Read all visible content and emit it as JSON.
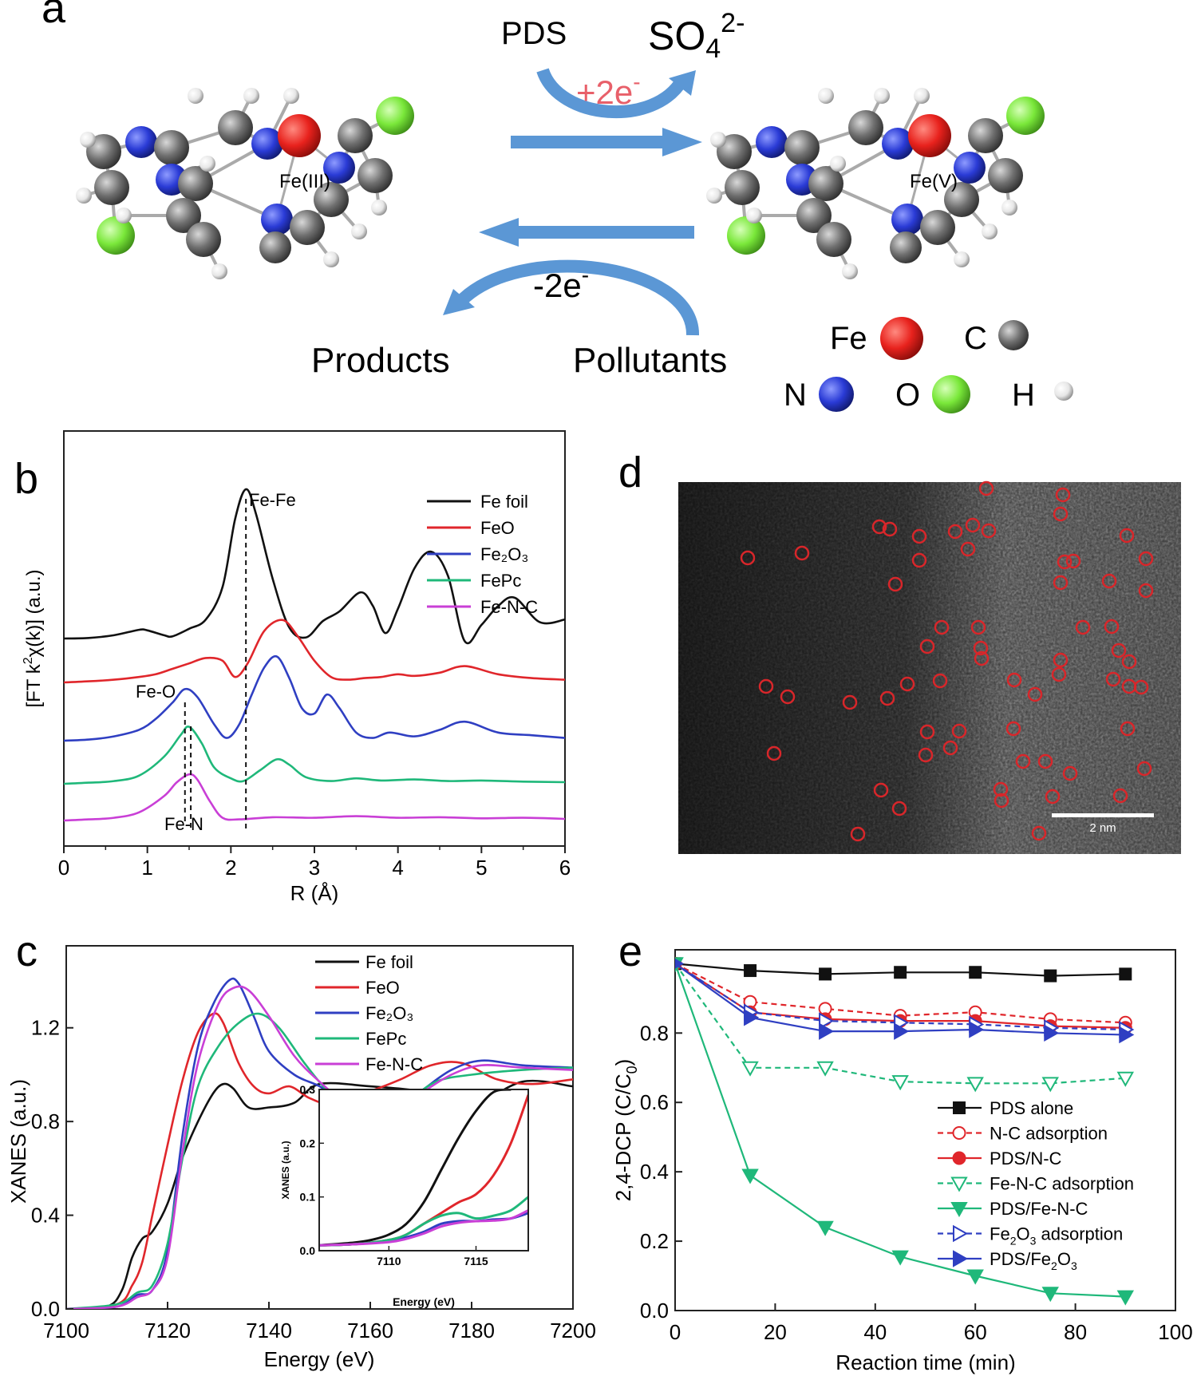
{
  "panel_letters": {
    "a": "a",
    "b": "b",
    "c": "c",
    "d": "d",
    "e": "e"
  },
  "panel_a": {
    "top_left_label": "PDS",
    "top_right_label_base": "SO",
    "top_right_label_sub": "4",
    "top_right_label_sup": "2-",
    "gain_label": "+2e",
    "gain_label_sup": "-",
    "loss_label": "-2e",
    "loss_label_sup": "-",
    "products_label": "Products",
    "pollutants_label": "Pollutants",
    "left_center_label": "Fe(III)",
    "right_center_label": "Fe(V)",
    "legend": [
      {
        "symbol": "Fe",
        "color": "#e8221d"
      },
      {
        "symbol": "C",
        "color": "#6f6f6f"
      },
      {
        "symbol": "N",
        "color": "#2a3bd6"
      },
      {
        "symbol": "O",
        "color": "#7ae83a"
      },
      {
        "symbol": "H",
        "color": "#e6e6e6"
      }
    ],
    "colors": {
      "arrow": "#5b97d5",
      "electron_text": "#e8606a"
    }
  },
  "panel_d": {
    "scale_bar_label": "2 nm",
    "marker_color": "#d8262a"
  },
  "chart_data": [
    {
      "panel": "b",
      "type": "line",
      "xlabel": "R (Å)",
      "ylabel_parts": {
        "pre": "[FT k",
        "sup": "2",
        "post": "χ(k)] (a.u.)"
      },
      "xlim": [
        0,
        6
      ],
      "xticks": [
        0,
        1,
        2,
        3,
        4,
        5,
        6
      ],
      "legend_position": "top-right",
      "annotations": [
        "Fe-Fe",
        "Fe-O",
        "Fe-N"
      ],
      "reference_lines_x": [
        2.18,
        1.45,
        1.52
      ],
      "series": [
        {
          "name": "Fe foil",
          "color": "#111111",
          "x": [
            0.0,
            0.3,
            0.6,
            0.9,
            1.0,
            1.2,
            1.3,
            1.5,
            1.7,
            1.9,
            2.05,
            2.18,
            2.3,
            2.5,
            2.7,
            2.9,
            3.1,
            3.3,
            3.55,
            3.7,
            3.85,
            4.0,
            4.2,
            4.4,
            4.6,
            4.8,
            5.0,
            5.2,
            5.4,
            5.7,
            6.0
          ],
          "y": [
            0.0,
            0.01,
            0.06,
            0.16,
            0.15,
            0.06,
            0.04,
            0.18,
            0.35,
            0.95,
            2.2,
            2.75,
            2.3,
            1.1,
            0.2,
            0.02,
            0.32,
            0.5,
            0.85,
            0.6,
            0.1,
            0.55,
            1.3,
            1.6,
            1.15,
            -0.05,
            0.25,
            0.6,
            0.75,
            0.3,
            0.35
          ]
        },
        {
          "name": "FeO",
          "color": "#e0262b",
          "x": [
            0.0,
            0.3,
            0.6,
            0.9,
            1.1,
            1.3,
            1.5,
            1.7,
            1.9,
            2.05,
            2.2,
            2.4,
            2.62,
            2.8,
            3.0,
            3.2,
            3.4,
            3.6,
            3.8,
            4.0,
            4.2,
            4.5,
            4.8,
            5.2,
            5.6,
            6.0
          ],
          "y": [
            0.0,
            0.02,
            0.05,
            0.1,
            0.15,
            0.25,
            0.35,
            0.45,
            0.4,
            0.1,
            0.35,
            0.95,
            1.15,
            0.85,
            0.4,
            0.1,
            0.05,
            0.08,
            0.1,
            0.15,
            0.12,
            0.18,
            0.3,
            0.15,
            0.08,
            0.05
          ]
        },
        {
          "name": "Fe₂O₃",
          "color": "#2f3fc2",
          "x": [
            0.0,
            0.3,
            0.6,
            0.9,
            1.1,
            1.3,
            1.45,
            1.6,
            1.8,
            1.95,
            2.1,
            2.25,
            2.4,
            2.55,
            2.7,
            2.85,
            3.0,
            3.15,
            3.3,
            3.5,
            3.7,
            3.9,
            4.2,
            4.5,
            4.8,
            5.2,
            5.6,
            6.0
          ],
          "y": [
            0.0,
            0.02,
            0.08,
            0.2,
            0.4,
            0.7,
            0.95,
            0.8,
            0.3,
            0.05,
            0.3,
            0.85,
            1.35,
            1.55,
            1.15,
            0.6,
            0.5,
            0.85,
            0.6,
            0.15,
            0.05,
            0.15,
            0.08,
            0.2,
            0.35,
            0.15,
            0.1,
            0.05
          ]
        },
        {
          "name": "FePc",
          "color": "#1fb87a",
          "x": [
            0.0,
            0.3,
            0.6,
            0.9,
            1.2,
            1.4,
            1.5,
            1.65,
            1.8,
            2.0,
            2.15,
            2.35,
            2.55,
            2.7,
            2.9,
            3.2,
            3.5,
            3.8,
            4.2,
            4.6,
            5.0,
            5.5,
            6.0
          ],
          "y": [
            0.0,
            0.02,
            0.05,
            0.15,
            0.5,
            0.9,
            1.05,
            0.75,
            0.3,
            0.1,
            0.05,
            0.25,
            0.45,
            0.35,
            0.12,
            0.05,
            0.1,
            0.06,
            0.08,
            0.05,
            0.06,
            0.04,
            0.03
          ]
        },
        {
          "name": "Fe-N-C",
          "color": "#c93fd6",
          "x": [
            0.0,
            0.3,
            0.6,
            0.9,
            1.2,
            1.35,
            1.5,
            1.6,
            1.75,
            1.9,
            2.1,
            2.5,
            3.0,
            3.5,
            4.0,
            4.5,
            5.0,
            5.5,
            6.0
          ],
          "y": [
            0.0,
            0.02,
            0.05,
            0.15,
            0.45,
            0.7,
            0.85,
            0.75,
            0.35,
            0.05,
            0.02,
            0.06,
            0.05,
            0.08,
            0.05,
            0.06,
            0.04,
            0.05,
            0.03
          ]
        }
      ]
    },
    {
      "panel": "c",
      "type": "line",
      "xlabel": "Energy (eV)",
      "ylabel": "XANES (a.u.)",
      "xlim": [
        7100,
        7200
      ],
      "ylim": [
        0,
        1.55
      ],
      "xticks": [
        7100,
        7120,
        7140,
        7160,
        7180,
        7200
      ],
      "yticks": [
        0.0,
        0.4,
        0.8,
        1.2
      ],
      "legend_position": "top-right",
      "series": [
        {
          "name": "Fe foil",
          "color": "#111111",
          "x": [
            7100,
            7108,
            7111,
            7113,
            7115,
            7117,
            7120,
            7123,
            7126,
            7129,
            7131,
            7133,
            7136,
            7140,
            7145,
            7150,
            7160,
            7170,
            7175,
            7180,
            7190,
            7200
          ],
          "y": [
            0,
            0.01,
            0.08,
            0.22,
            0.3,
            0.33,
            0.45,
            0.65,
            0.8,
            0.92,
            0.96,
            0.94,
            0.86,
            0.86,
            0.88,
            0.96,
            0.95,
            0.93,
            0.9,
            0.86,
            0.97,
            0.95
          ]
        },
        {
          "name": "FeO",
          "color": "#e0262b",
          "x": [
            7100,
            7110,
            7113,
            7115,
            7117,
            7120,
            7123,
            7126,
            7129,
            7131,
            7134,
            7137,
            7140,
            7144,
            7148,
            7152,
            7160,
            7166,
            7172,
            7178,
            7185,
            7192,
            7200
          ],
          "y": [
            0,
            0.02,
            0.1,
            0.2,
            0.4,
            0.7,
            0.98,
            1.18,
            1.26,
            1.22,
            1.05,
            0.95,
            0.92,
            0.95,
            0.9,
            0.88,
            0.93,
            0.98,
            1.04,
            1.05,
            0.98,
            0.96,
            0.98
          ]
        },
        {
          "name": "Fe₂O₃",
          "color": "#2f3fc2",
          "x": [
            7100,
            7110,
            7114,
            7117,
            7120,
            7123,
            7126,
            7129,
            7132,
            7134,
            7137,
            7140,
            7145,
            7150,
            7155,
            7160,
            7165,
            7170,
            7176,
            7182,
            7190,
            7200
          ],
          "y": [
            0,
            0.01,
            0.06,
            0.08,
            0.25,
            0.75,
            1.12,
            1.3,
            1.4,
            1.39,
            1.25,
            1.1,
            1.0,
            0.95,
            0.88,
            0.83,
            0.86,
            0.93,
            1.02,
            1.06,
            1.04,
            1.03
          ]
        },
        {
          "name": "FePc",
          "color": "#1fb87a",
          "x": [
            7100,
            7110,
            7114,
            7117,
            7120,
            7123,
            7126,
            7130,
            7134,
            7138,
            7142,
            7147,
            7152,
            7157,
            7162,
            7167,
            7173,
            7180,
            7190,
            7200
          ],
          "y": [
            0,
            0.02,
            0.07,
            0.1,
            0.28,
            0.65,
            0.95,
            1.12,
            1.22,
            1.26,
            1.2,
            1.05,
            0.92,
            0.84,
            0.82,
            0.88,
            0.97,
            1.0,
            1.02,
            1.03
          ]
        },
        {
          "name": "Fe-N-C",
          "color": "#c93fd6",
          "x": [
            7100,
            7110,
            7114,
            7117,
            7120,
            7123,
            7126,
            7130,
            7133,
            7136,
            7140,
            7145,
            7150,
            7155,
            7160,
            7165,
            7170,
            7176,
            7182,
            7190,
            7200
          ],
          "y": [
            0,
            0.01,
            0.05,
            0.08,
            0.22,
            0.68,
            1.05,
            1.3,
            1.37,
            1.36,
            1.25,
            1.08,
            0.97,
            0.88,
            0.82,
            0.85,
            0.92,
            1.0,
            1.04,
            1.03,
            1.02
          ]
        }
      ],
      "inset": {
        "xlabel": "Energy (eV)",
        "ylabel": "XANES (a.u.)",
        "xlim": [
          7106,
          7118
        ],
        "ylim": [
          0,
          0.3
        ],
        "xticks": [
          7110,
          7115
        ],
        "yticks": [
          0.0,
          0.1,
          0.2,
          0.3
        ],
        "series": [
          {
            "name": "Fe foil",
            "color": "#111111",
            "x": [
              7106,
              7108,
              7109,
              7110,
              7111,
              7112,
              7113,
              7114,
              7115,
              7116,
              7117
            ],
            "y": [
              0.01,
              0.015,
              0.02,
              0.03,
              0.05,
              0.09,
              0.15,
              0.21,
              0.26,
              0.295,
              0.3
            ]
          },
          {
            "name": "FeO",
            "color": "#e0262b",
            "x": [
              7106,
              7108,
              7110,
              7111,
              7112,
              7113,
              7114,
              7115,
              7116,
              7117,
              7118
            ],
            "y": [
              0.01,
              0.012,
              0.02,
              0.03,
              0.05,
              0.07,
              0.09,
              0.105,
              0.14,
              0.2,
              0.29
            ]
          },
          {
            "name": "Fe₂O₃",
            "color": "#2f3fc2",
            "x": [
              7106,
              7108,
              7110,
              7111,
              7112,
              7113,
              7114,
              7115,
              7116,
              7117,
              7118
            ],
            "y": [
              0.01,
              0.012,
              0.018,
              0.025,
              0.035,
              0.05,
              0.055,
              0.055,
              0.058,
              0.06,
              0.07
            ]
          },
          {
            "name": "FePc",
            "color": "#1fb87a",
            "x": [
              7106,
              7108,
              7110,
              7111,
              7112,
              7113,
              7114,
              7115,
              7116,
              7117,
              7118
            ],
            "y": [
              0.01,
              0.012,
              0.02,
              0.03,
              0.05,
              0.065,
              0.07,
              0.06,
              0.065,
              0.075,
              0.1
            ]
          },
          {
            "name": "Fe-N-C",
            "color": "#c93fd6",
            "x": [
              7106,
              7108,
              7110,
              7111,
              7112,
              7113,
              7114,
              7115,
              7116,
              7117,
              7118
            ],
            "y": [
              0.01,
              0.012,
              0.016,
              0.022,
              0.032,
              0.045,
              0.052,
              0.055,
              0.056,
              0.06,
              0.075
            ]
          }
        ]
      }
    },
    {
      "panel": "e",
      "type": "line",
      "xlabel": "Reaction time (min)",
      "ylabel_parts": {
        "pre": "2,4-DCP (C/C",
        "sub": "0",
        "post": ")"
      },
      "xlim": [
        0,
        100
      ],
      "ylim": [
        0,
        1.04
      ],
      "xticks": [
        0,
        20,
        40,
        60,
        80,
        100
      ],
      "yticks": [
        0.0,
        0.2,
        0.4,
        0.6,
        0.8
      ],
      "legend_position": "bottom-right",
      "x": [
        0,
        15,
        30,
        45,
        60,
        75,
        90
      ],
      "series": [
        {
          "name": "PDS alone",
          "color": "#111111",
          "marker": "square",
          "filled": true,
          "dashed": false,
          "values": [
            1.0,
            0.98,
            0.97,
            0.975,
            0.975,
            0.965,
            0.97
          ]
        },
        {
          "name": "N-C adsorption",
          "color": "#e0262b",
          "marker": "circle",
          "filled": false,
          "dashed": true,
          "values": [
            1.0,
            0.89,
            0.87,
            0.85,
            0.86,
            0.84,
            0.83
          ]
        },
        {
          "name": "PDS/N-C",
          "color": "#e0262b",
          "marker": "circle",
          "filled": true,
          "dashed": false,
          "values": [
            1.0,
            0.86,
            0.84,
            0.835,
            0.835,
            0.82,
            0.815
          ]
        },
        {
          "name": "Fe-N-C adsorption",
          "color": "#1fb87a",
          "marker": "triangle-down",
          "filled": false,
          "dashed": true,
          "values": [
            1.0,
            0.7,
            0.7,
            0.66,
            0.655,
            0.655,
            0.67
          ]
        },
        {
          "name": "PDS/Fe-N-C",
          "color": "#1fb87a",
          "marker": "triangle-down",
          "filled": true,
          "dashed": false,
          "values": [
            1.0,
            0.39,
            0.24,
            0.155,
            0.1,
            0.05,
            0.04
          ]
        },
        {
          "name_parts": {
            "pre": "Fe",
            "sub": "2",
            "mid": "O",
            "sub2": "3",
            "post": " adsorption"
          },
          "color": "#2f3fc2",
          "marker": "triangle-right",
          "filled": false,
          "dashed": true,
          "values": [
            1.0,
            0.86,
            0.835,
            0.83,
            0.825,
            0.815,
            0.81
          ]
        },
        {
          "name_parts": {
            "pre": "PDS/Fe",
            "sub": "2",
            "mid": "O",
            "sub2": "3",
            "post": ""
          },
          "color": "#2f3fc2",
          "marker": "triangle-right",
          "filled": true,
          "dashed": false,
          "values": [
            1.0,
            0.845,
            0.805,
            0.805,
            0.81,
            0.8,
            0.795
          ]
        }
      ]
    }
  ]
}
